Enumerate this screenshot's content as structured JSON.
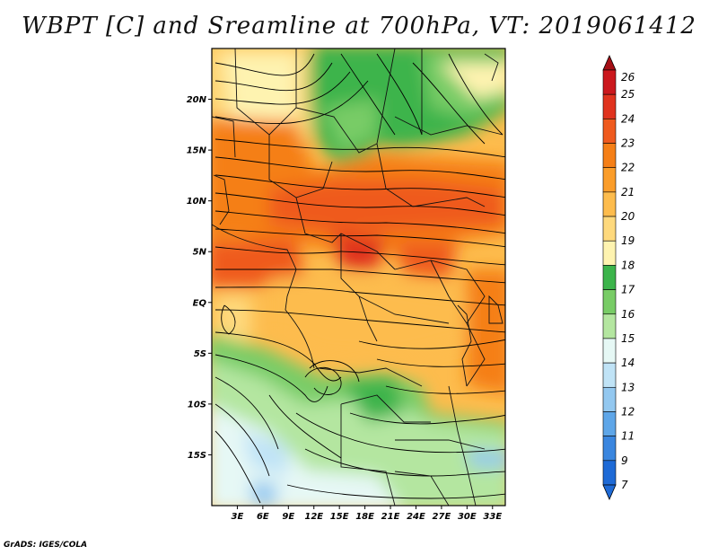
{
  "title": "WBPT [C] and Sreamline at 700hPa, VT: 2019061412",
  "footer": "GrADS: IGES/COLA",
  "map": {
    "lon_range": [
      0,
      34.5
    ],
    "lat_range": [
      -20,
      25
    ],
    "y_ticks": [
      "20N",
      "15N",
      "10N",
      "5N",
      "EQ",
      "5S",
      "10S",
      "15S"
    ],
    "y_tick_values": [
      20,
      15,
      10,
      5,
      0,
      -5,
      -10,
      -15
    ],
    "x_ticks": [
      "3E",
      "6E",
      "9E",
      "12E",
      "15E",
      "18E",
      "21E",
      "24E",
      "27E",
      "30E",
      "33E"
    ],
    "x_tick_values": [
      3,
      6,
      9,
      12,
      15,
      18,
      21,
      24,
      27,
      30,
      33
    ]
  },
  "colorbar": {
    "labels": [
      "26",
      "25",
      "24",
      "23",
      "22",
      "21",
      "20",
      "19",
      "18",
      "17",
      "16",
      "15",
      "14",
      "13",
      "12",
      "11",
      "9",
      "7"
    ],
    "colors": [
      "#a50f15",
      "#cb181d",
      "#e0331e",
      "#ef5a1e",
      "#f57f17",
      "#fb9d2a",
      "#fdbc4d",
      "#fed97d",
      "#fef3b0",
      "#3cb44b",
      "#78cc66",
      "#b4e6a0",
      "#e6f8f5",
      "#c0e3f6",
      "#93c8f0",
      "#5ea6e8",
      "#3a86df",
      "#1e6ad6"
    ],
    "top_color": "#a50f15",
    "bottom_color": "#1e6ad6"
  }
}
